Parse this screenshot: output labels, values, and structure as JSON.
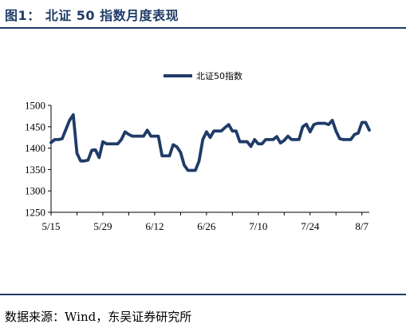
{
  "figure": {
    "title": "图1：  北证 50 指数月度表现",
    "source": "数据来源：Wind，东吴证券研究所"
  },
  "colors": {
    "series": "#1f3c68",
    "rule": "#1f3c68"
  },
  "chart_data": {
    "type": "line",
    "title": "",
    "xlabel": "",
    "ylabel": "",
    "ylim": [
      1250,
      1500
    ],
    "yticks": [
      "1250",
      "1300",
      "1350",
      "1400",
      "1450",
      "1500"
    ],
    "xlim": [
      "2024-05-15",
      "2024-08-09"
    ],
    "xticks": [
      "5/15",
      "5/29",
      "6/12",
      "6/26",
      "7/10",
      "7/24",
      "8/7"
    ],
    "xtick_dates": [
      "2024-05-15",
      "2024-05-29",
      "2024-06-12",
      "2024-06-26",
      "2024-07-10",
      "2024-07-24",
      "2024-08-07"
    ],
    "grid": false,
    "legend": "top-center",
    "series": [
      {
        "name": "北证50指数",
        "x": [
          "2024-05-15",
          "2024-05-16",
          "2024-05-17",
          "2024-05-18",
          "2024-05-20",
          "2024-05-21",
          "2024-05-22",
          "2024-05-23",
          "2024-05-24",
          "2024-05-25",
          "2024-05-26",
          "2024-05-27",
          "2024-05-28",
          "2024-05-29",
          "2024-05-30",
          "2024-05-31",
          "2024-06-01",
          "2024-06-02",
          "2024-06-03",
          "2024-06-04",
          "2024-06-05",
          "2024-06-06",
          "2024-06-07",
          "2024-06-09",
          "2024-06-10",
          "2024-06-11",
          "2024-06-12",
          "2024-06-13",
          "2024-06-14",
          "2024-06-15",
          "2024-06-16",
          "2024-06-17",
          "2024-06-18",
          "2024-06-19",
          "2024-06-20",
          "2024-06-21",
          "2024-06-22",
          "2024-06-23",
          "2024-06-24",
          "2024-06-25",
          "2024-06-26",
          "2024-06-27",
          "2024-06-28",
          "2024-06-29",
          "2024-06-30",
          "2024-07-01",
          "2024-07-02",
          "2024-07-03",
          "2024-07-04",
          "2024-07-05",
          "2024-07-06",
          "2024-07-07",
          "2024-07-08",
          "2024-07-09",
          "2024-07-10",
          "2024-07-11",
          "2024-07-12",
          "2024-07-13",
          "2024-07-14",
          "2024-07-15",
          "2024-07-16",
          "2024-07-17",
          "2024-07-18",
          "2024-07-19",
          "2024-07-20",
          "2024-07-21",
          "2024-07-22",
          "2024-07-23",
          "2024-07-24",
          "2024-07-25",
          "2024-07-26",
          "2024-07-27",
          "2024-07-28",
          "2024-07-29",
          "2024-07-30",
          "2024-07-31",
          "2024-08-01",
          "2024-08-02",
          "2024-08-03",
          "2024-08-04",
          "2024-08-05",
          "2024-08-06",
          "2024-08-07",
          "2024-08-08",
          "2024-08-09"
        ],
        "y": [
          1413,
          1420,
          1420,
          1422,
          1465,
          1478,
          1388,
          1370,
          1370,
          1372,
          1395,
          1396,
          1378,
          1415,
          1410,
          1410,
          1410,
          1410,
          1420,
          1438,
          1432,
          1428,
          1428,
          1428,
          1442,
          1428,
          1428,
          1428,
          1382,
          1382,
          1382,
          1408,
          1403,
          1390,
          1360,
          1348,
          1348,
          1348,
          1370,
          1420,
          1438,
          1425,
          1440,
          1440,
          1440,
          1448,
          1455,
          1440,
          1440,
          1415,
          1415,
          1415,
          1404,
          1420,
          1410,
          1410,
          1420,
          1420,
          1420,
          1427,
          1412,
          1418,
          1428,
          1420,
          1420,
          1420,
          1450,
          1456,
          1438,
          1455,
          1458,
          1458,
          1458,
          1455,
          1465,
          1440,
          1422,
          1420,
          1420,
          1420,
          1432,
          1435,
          1460,
          1460,
          1442
        ]
      }
    ]
  }
}
